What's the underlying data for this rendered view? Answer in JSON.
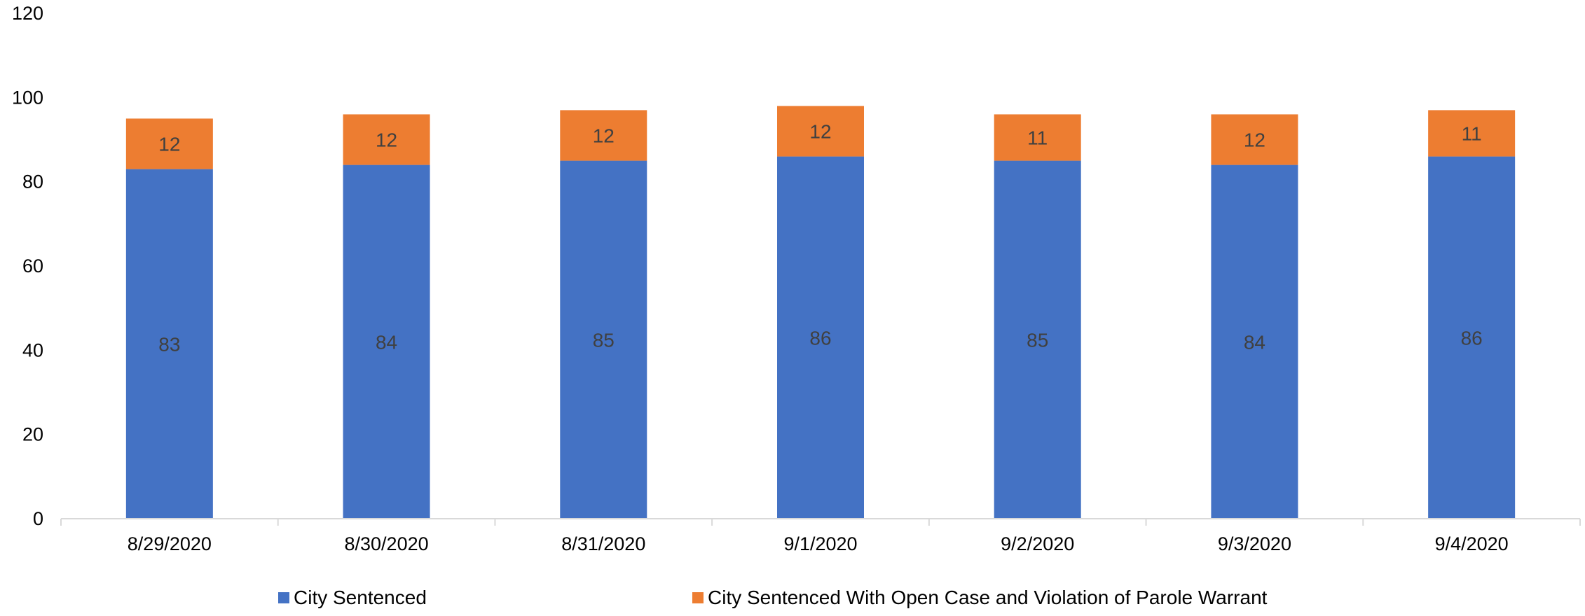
{
  "chart_data": {
    "type": "bar",
    "stacked": true,
    "categories": [
      "8/29/2020",
      "8/30/2020",
      "8/31/2020",
      "9/1/2020",
      "9/2/2020",
      "9/3/2020",
      "9/4/2020"
    ],
    "series": [
      {
        "name": "City Sentenced",
        "color": "#4472C4",
        "values": [
          83,
          84,
          85,
          86,
          85,
          84,
          86
        ]
      },
      {
        "name": "City Sentenced With Open Case and Violation of Parole Warrant",
        "color": "#ED7D31",
        "values": [
          12,
          12,
          12,
          12,
          11,
          12,
          11
        ]
      }
    ],
    "y_ticks": [
      0,
      20,
      40,
      60,
      80,
      100,
      120
    ],
    "ylim": [
      0,
      120
    ],
    "grid": false,
    "data_labels": true,
    "legend_position": "bottom"
  }
}
